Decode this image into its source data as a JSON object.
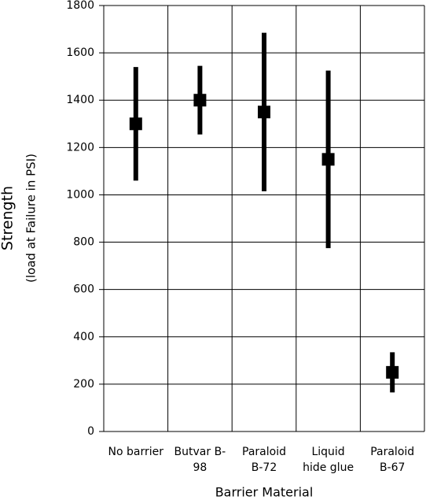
{
  "chart_data": {
    "type": "errorbar",
    "y_label": "Strength",
    "y_sublabel": "(load at Failure in PSI)",
    "x_label": "Barrier Material",
    "categories": [
      "No barrier",
      "Butvar B-\n98",
      "Paraloid\nB-72",
      "Liquid\nhide glue",
      "Paraloid\nB-67"
    ],
    "values": [
      1300,
      1400,
      1350,
      1150,
      250
    ],
    "errors": [
      240,
      145,
      335,
      375,
      85
    ],
    "color": "#000000",
    "ylim": [
      0,
      1800
    ],
    "yticks": [
      0,
      200,
      400,
      600,
      800,
      1000,
      1200,
      1400,
      1600,
      1800
    ],
    "grid": true
  }
}
